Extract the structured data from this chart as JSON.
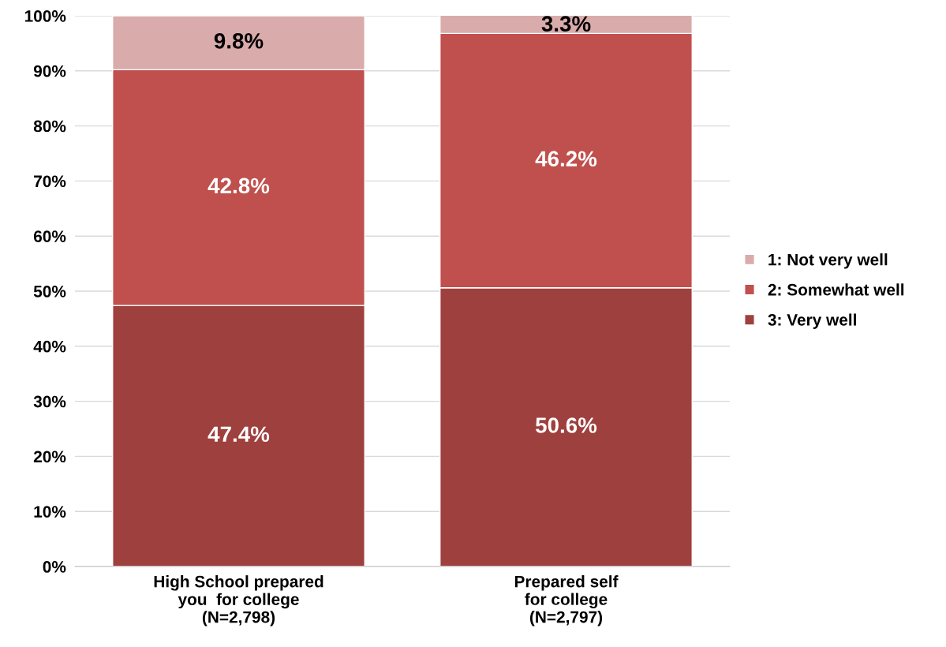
{
  "chart_data": {
    "type": "bar",
    "stacked": true,
    "categories": [
      "High School prepared\nyou  for college\n(N=2,798)",
      "Prepared self\nfor college\n(N=2,797)"
    ],
    "series": [
      {
        "name": "3: Very well",
        "color": "#9e403e",
        "values": [
          47.4,
          50.6
        ],
        "value_labels": [
          "47.4%",
          "50.6%"
        ]
      },
      {
        "name": "2: Somewhat well",
        "color": "#c0504d",
        "values": [
          42.8,
          46.2
        ],
        "value_labels": [
          "42.8%",
          "46.2%"
        ]
      },
      {
        "name": "1: Not very well",
        "color": "#d9abab",
        "values": [
          9.8,
          3.3
        ],
        "value_labels": [
          "9.8%",
          "3.3%"
        ]
      }
    ],
    "ylim": [
      0,
      100
    ],
    "yticks": [
      {
        "value": 0,
        "label": "0%"
      },
      {
        "value": 10,
        "label": "10%"
      },
      {
        "value": 20,
        "label": "20%"
      },
      {
        "value": 30,
        "label": "30%"
      },
      {
        "value": 40,
        "label": "40%"
      },
      {
        "value": 50,
        "label": "50%"
      },
      {
        "value": 60,
        "label": "60%"
      },
      {
        "value": 70,
        "label": "70%"
      },
      {
        "value": 80,
        "label": "80%"
      },
      {
        "value": 90,
        "label": "90%"
      },
      {
        "value": 100,
        "label": "100%"
      }
    ],
    "grid": "y",
    "legend": "right"
  }
}
